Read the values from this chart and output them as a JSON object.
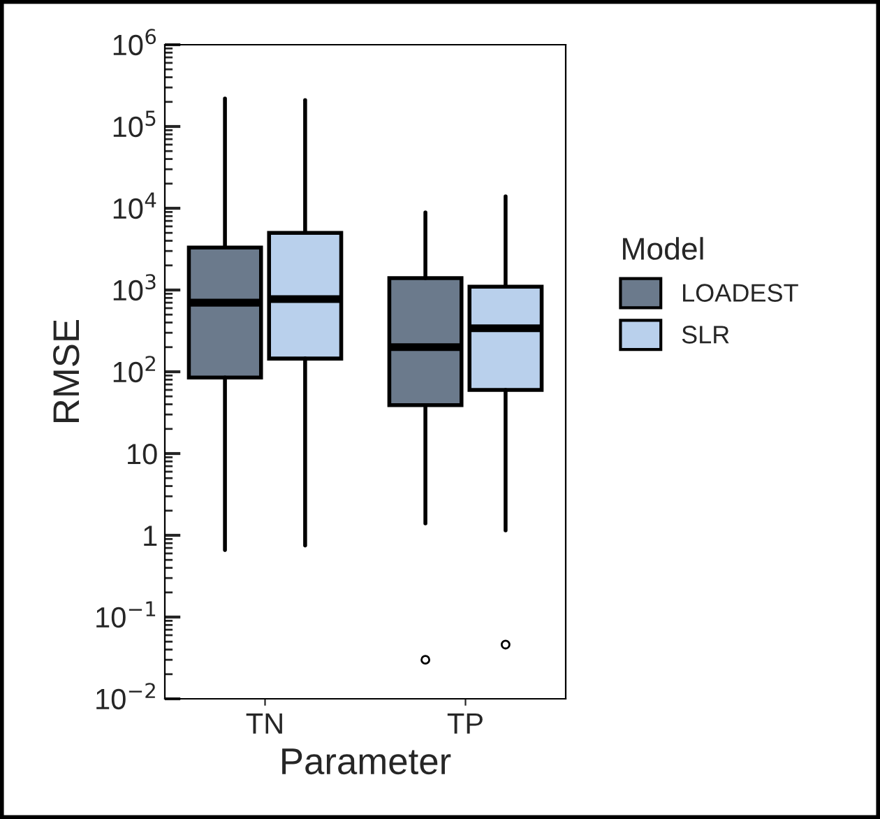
{
  "chart_data": {
    "type": "box",
    "xlabel": "Parameter",
    "ylabel": "RMSE",
    "legend_title": "Model",
    "legend": "right",
    "log": "y",
    "grid": false,
    "categories": [
      "TN",
      "TP"
    ],
    "ylim": [
      0.01,
      1000000
    ],
    "yticks": [
      {
        "value": 0.01,
        "label": "10$^{−2}$"
      },
      {
        "value": 0.1,
        "label": "10$^{−1}$"
      },
      1,
      10,
      {
        "value": 100,
        "label": "10$^{2}$"
      },
      {
        "value": 1000,
        "label": "10$^{3}$"
      },
      {
        "value": 10000,
        "label": "10$^{4}$"
      },
      {
        "value": 100000,
        "label": "10$^{5}$"
      },
      {
        "value": 1000000,
        "label": "10$^{6}$"
      }
    ],
    "series": [
      {
        "name": "LOADEST",
        "color": "#6b7a8c",
        "boxes": [
          {
            "low": 0.66,
            "q1": 85,
            "median": 700,
            "q3": 3300,
            "high": 220000
          },
          {
            "low": 1.4,
            "q1": 39,
            "median": 200,
            "q3": 1400,
            "high": 8900,
            "outliers": [
              0.03
            ]
          }
        ]
      },
      {
        "name": "SLR",
        "color": "#b9d0ec",
        "boxes": [
          {
            "low": 0.75,
            "q1": 145,
            "median": 775,
            "q3": 5000,
            "high": 210000
          },
          {
            "low": 1.15,
            "q1": 60,
            "median": 340,
            "q3": 1100,
            "high": 14000,
            "outliers": [
              0.046
            ]
          }
        ]
      }
    ]
  }
}
